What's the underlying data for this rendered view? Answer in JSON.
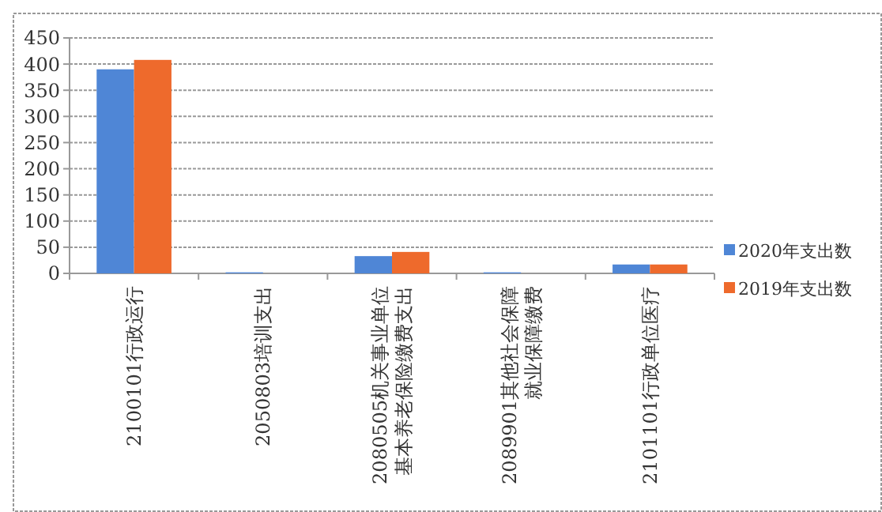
{
  "chart_data": {
    "type": "bar",
    "categories": [
      "2100101行政运行",
      "2050803培训支出",
      "2080505机关事业单位基本养老保险缴费支出",
      "2089901其他社会保障就业保障缴费",
      "2101101行政单位医疗"
    ],
    "series": [
      {
        "name": "2020年支出数",
        "color": "#4f86d6",
        "values": [
          390,
          2,
          33,
          2,
          17
        ]
      },
      {
        "name": "2019年支出数",
        "color": "#ee6a2c",
        "values": [
          408,
          null,
          41,
          null,
          17
        ]
      }
    ],
    "ylim": [
      0,
      450
    ],
    "yticks": [
      0,
      50,
      100,
      150,
      200,
      250,
      300,
      350,
      400,
      450
    ],
    "grid": "y",
    "legend": "right"
  }
}
